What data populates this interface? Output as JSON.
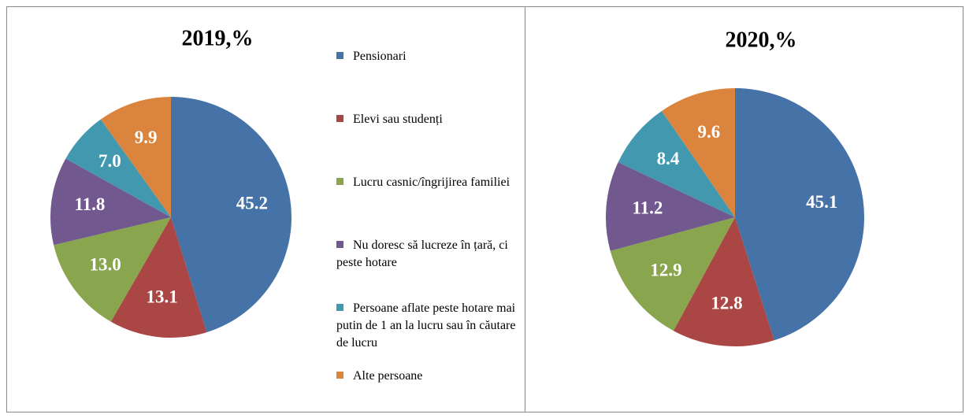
{
  "chart_data": [
    {
      "type": "pie",
      "title": "2019,%",
      "categories": [
        "Pensionari",
        "Elevi sau studenți",
        "Lucru casnic/îngrijirea familiei",
        "Nu doresc să lucreze în țară, ci peste hotare",
        "Persoane aflate peste hotare mai putin de 1 an la lucru sau în căutare de lucru",
        "Alte persoane"
      ],
      "values": [
        45.2,
        13.1,
        13.0,
        11.8,
        7.0,
        9.9
      ],
      "value_labels": [
        "45.2",
        "13.1",
        "13.0",
        "11.8",
        "7.0",
        "9.9"
      ],
      "colors": [
        "#4572a7",
        "#aa4643",
        "#89a54e",
        "#71588f",
        "#4198af",
        "#db843d"
      ],
      "legend": "right"
    },
    {
      "type": "pie",
      "title": "2020,%",
      "values": [
        45.1,
        12.8,
        12.9,
        11.2,
        8.4,
        9.6
      ],
      "value_labels": [
        "45.1",
        "12.8",
        "12.9",
        "11.2",
        "8.4",
        "9.6"
      ],
      "colors": [
        "#4572a7",
        "#aa4643",
        "#89a54e",
        "#71588f",
        "#4198af",
        "#db843d"
      ]
    }
  ]
}
